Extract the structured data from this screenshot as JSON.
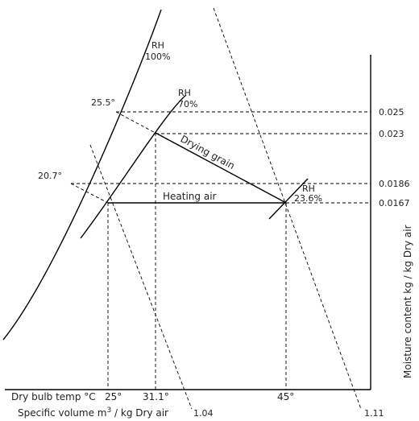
{
  "rh_labels": {
    "rh100_a": "RH",
    "rh100_b": "100%",
    "rh70_a": "RH",
    "rh70_b": "70%",
    "rh236_a": "RH",
    "rh236_b": "23.6%"
  },
  "curve_temps": {
    "t255": "25.5°",
    "t207": "20.7°"
  },
  "process_labels": {
    "drying": "Drying grain",
    "heating": "Heating air"
  },
  "moisture_ticks": [
    "0.025",
    "0.023",
    "0.0186",
    "0.0167"
  ],
  "axis_labels": {
    "moisture": "Moisture content kg / kg Dry air",
    "dry_bulb": "Dry bulb temp °C",
    "specific_volume_prefix": "Specific volume m",
    "specific_volume_sup": "3",
    "specific_volume_suffix": " / kg Dry air"
  },
  "temp_ticks": {
    "t25": "25°",
    "t311": "31.1°",
    "t45": "45°"
  },
  "volume_ticks": {
    "v104": "1.04",
    "v111": "1.11"
  }
}
